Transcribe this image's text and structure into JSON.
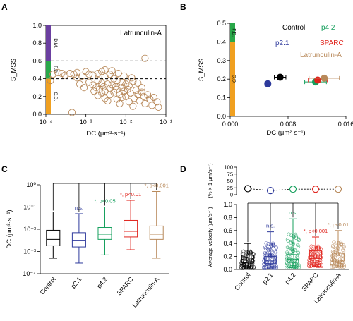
{
  "colors": {
    "control": "#000000",
    "p21": "#2e3a9c",
    "p42": "#17a05e",
    "sparc": "#e0231c",
    "latrunculin": "#b8895a",
    "cd": "#f0a020",
    "fd": "#2aa84a",
    "dm": "#6b3fa0"
  },
  "chart_data": [
    {
      "panel": "A",
      "type": "scatter",
      "annotation": "Latrunculin-A",
      "xlabel": "DC (μm²·s⁻¹)",
      "ylabel": "S_MSS",
      "xscale": "log",
      "xlim": [
        0.0001,
        0.1
      ],
      "ylim": [
        0,
        1.0
      ],
      "x_tick_labels": [
        "10⁻⁴",
        "10⁻³",
        "10⁻²",
        "10⁻¹"
      ],
      "y_tick_labels": [
        "0.0",
        "0.2",
        "0.4",
        "0.6",
        "0.8",
        "1.0"
      ],
      "thresholds": [
        0.4,
        0.6
      ],
      "bands": [
        {
          "label": "C.D.",
          "from": 0.0,
          "to": 0.4
        },
        {
          "label": "F.D.",
          "from": 0.4,
          "to": 0.6
        },
        {
          "label": "D.M.",
          "from": 0.6,
          "to": 1.0
        }
      ],
      "points": [
        [
          0.00013,
          0.38
        ],
        [
          0.00015,
          0.45
        ],
        [
          0.0002,
          0.47
        ],
        [
          0.00025,
          0.46
        ],
        [
          0.0003,
          0.44
        ],
        [
          0.0004,
          0.46
        ],
        [
          0.0005,
          0.45
        ],
        [
          0.0006,
          0.47
        ],
        [
          0.0008,
          0.43
        ],
        [
          0.001,
          0.48
        ],
        [
          0.0012,
          0.45
        ],
        [
          0.0015,
          0.44
        ],
        [
          0.002,
          0.46
        ],
        [
          0.0025,
          0.48
        ],
        [
          0.003,
          0.42
        ],
        [
          0.004,
          0.45
        ],
        [
          0.005,
          0.4
        ],
        [
          0.006,
          0.38
        ],
        [
          0.008,
          0.36
        ],
        [
          0.01,
          0.34
        ],
        [
          0.012,
          0.32
        ],
        [
          0.015,
          0.37
        ],
        [
          0.02,
          0.35
        ],
        [
          0.025,
          0.3
        ],
        [
          0.0012,
          0.36
        ],
        [
          0.0015,
          0.33
        ],
        [
          0.0018,
          0.3
        ],
        [
          0.002,
          0.38
        ],
        [
          0.0022,
          0.28
        ],
        [
          0.0025,
          0.35
        ],
        [
          0.0028,
          0.31
        ],
        [
          0.003,
          0.26
        ],
        [
          0.0035,
          0.34
        ],
        [
          0.004,
          0.29
        ],
        [
          0.0045,
          0.33
        ],
        [
          0.005,
          0.25
        ],
        [
          0.0055,
          0.31
        ],
        [
          0.006,
          0.28
        ],
        [
          0.007,
          0.22
        ],
        [
          0.008,
          0.3
        ],
        [
          0.009,
          0.26
        ],
        [
          0.01,
          0.2
        ],
        [
          0.011,
          0.28
        ],
        [
          0.013,
          0.24
        ],
        [
          0.016,
          0.18
        ],
        [
          0.018,
          0.27
        ],
        [
          0.02,
          0.22
        ],
        [
          0.022,
          0.15
        ],
        [
          0.025,
          0.25
        ],
        [
          0.028,
          0.2
        ],
        [
          0.03,
          0.12
        ],
        [
          0.035,
          0.22
        ],
        [
          0.04,
          0.17
        ],
        [
          0.045,
          0.1
        ],
        [
          0.05,
          0.19
        ],
        [
          0.06,
          0.14
        ],
        [
          0.065,
          0.08
        ],
        [
          0.002,
          0.21
        ],
        [
          0.003,
          0.18
        ],
        [
          0.004,
          0.22
        ],
        [
          0.0035,
          0.15
        ],
        [
          0.006,
          0.17
        ],
        [
          0.007,
          0.12
        ],
        [
          0.008,
          0.19
        ],
        [
          0.012,
          0.14
        ],
        [
          0.015,
          0.09
        ],
        [
          0.0016,
          0.26
        ],
        [
          0.0025,
          0.24
        ],
        [
          0.0009,
          0.3
        ],
        [
          0.0007,
          0.34
        ],
        [
          0.00045,
          0.02
        ],
        [
          0.0006,
          0.41
        ],
        [
          0.03,
          0.63
        ],
        [
          0.003,
          0.5
        ],
        [
          0.0045,
          0.49
        ],
        [
          0.0065,
          0.46
        ],
        [
          0.009,
          0.43
        ],
        [
          0.014,
          0.41
        ]
      ]
    },
    {
      "panel": "B",
      "type": "scatter",
      "xlabel": "DC (μm²·s⁻¹)",
      "ylabel": "S_MSS",
      "xlim": [
        0.0,
        0.016
      ],
      "ylim": [
        0.0,
        0.5
      ],
      "x_tick_labels": [
        "0.000",
        "0.008",
        "0.016"
      ],
      "y_tick_labels": [
        "0.0",
        "0.1",
        "0.2",
        "0.3",
        "0.4",
        "0.5"
      ],
      "bands": [
        {
          "label": "C.D.",
          "from": 0.0,
          "to": 0.4
        },
        {
          "label": "F.D.",
          "from": 0.4,
          "to": 0.5
        }
      ],
      "series": [
        {
          "name": "Control",
          "x": 0.0069,
          "y": 0.21,
          "xerr": 0.0008,
          "yerr": 0.01,
          "color_key": "control"
        },
        {
          "name": "p2.1",
          "x": 0.0052,
          "y": 0.175,
          "xerr": 0.0004,
          "yerr": 0.01,
          "color_key": "p21"
        },
        {
          "name": "p4.2",
          "x": 0.0118,
          "y": 0.185,
          "xerr": 0.0015,
          "yerr": 0.01,
          "color_key": "p42"
        },
        {
          "name": "SPARC",
          "x": 0.0121,
          "y": 0.195,
          "xerr": 0.0013,
          "yerr": 0.01,
          "color_key": "sparc"
        },
        {
          "name": "Latrunculin-A",
          "x": 0.013,
          "y": 0.205,
          "xerr": 0.0021,
          "yerr": 0.01,
          "color_key": "latrunculin"
        }
      ]
    },
    {
      "panel": "C",
      "type": "box",
      "ylabel": "DC (μm²·s⁻¹)",
      "yscale": "log",
      "ylim": [
        0.0001,
        1
      ],
      "y_tick_labels": [
        "10⁻⁴",
        "10⁻³",
        "10⁻²",
        "10⁻¹",
        "10⁰"
      ],
      "categories": [
        "Control",
        "p2.1",
        "p4.2",
        "SPARC",
        "Latrunculin-A"
      ],
      "boxes": [
        {
          "min": 0.0005,
          "q1": 0.0018,
          "median": 0.0035,
          "q3": 0.009,
          "max": 0.06
        },
        {
          "min": 0.0003,
          "q1": 0.0016,
          "median": 0.0032,
          "q3": 0.007,
          "max": 0.05
        },
        {
          "min": 0.0007,
          "q1": 0.0035,
          "median": 0.006,
          "q3": 0.012,
          "max": 0.1
        },
        {
          "min": 0.0012,
          "q1": 0.0045,
          "median": 0.008,
          "q3": 0.025,
          "max": 0.2
        },
        {
          "min": 0.0005,
          "q1": 0.0035,
          "median": 0.006,
          "q3": 0.014,
          "max": 0.5
        }
      ],
      "annotations": [
        "",
        "n.s.",
        "*, p<0.05",
        "*, p<0.01",
        "*, p<0.001"
      ]
    },
    {
      "panel": "D",
      "type": "box",
      "top_ylabel": "(% > 1 μm/s⁻¹)",
      "top_ylim": [
        0,
        100
      ],
      "top_y_tick_labels": [
        "0",
        "25",
        "50",
        "75",
        "100"
      ],
      "top_values": [
        22,
        15,
        20,
        20,
        20
      ],
      "ylabel": "Average velocity (μm/s⁻¹)",
      "ylim": [
        0.0,
        1.0
      ],
      "y_tick_labels": [
        "0.0",
        "0.2",
        "0.4",
        "0.6",
        "0.8",
        "1.0"
      ],
      "categories": [
        "Control",
        "p2.1",
        "p4.2",
        "SPARC",
        "Latrunculin-A"
      ],
      "boxes": [
        {
          "min": 0.02,
          "q1": 0.1,
          "median": 0.15,
          "q3": 0.22,
          "max": 0.4
        },
        {
          "min": 0.02,
          "q1": 0.09,
          "median": 0.14,
          "q3": 0.2,
          "max": 0.58
        },
        {
          "min": 0.03,
          "q1": 0.11,
          "median": 0.16,
          "q3": 0.23,
          "max": 0.78
        },
        {
          "min": 0.05,
          "q1": 0.17,
          "median": 0.22,
          "q3": 0.29,
          "max": 0.5
        },
        {
          "min": 0.04,
          "q1": 0.13,
          "median": 0.18,
          "q3": 0.25,
          "max": 0.6
        }
      ],
      "annotations": [
        "",
        "n.s.",
        "n.s.",
        "*, p<0.001",
        "*, p<0.01"
      ]
    }
  ]
}
